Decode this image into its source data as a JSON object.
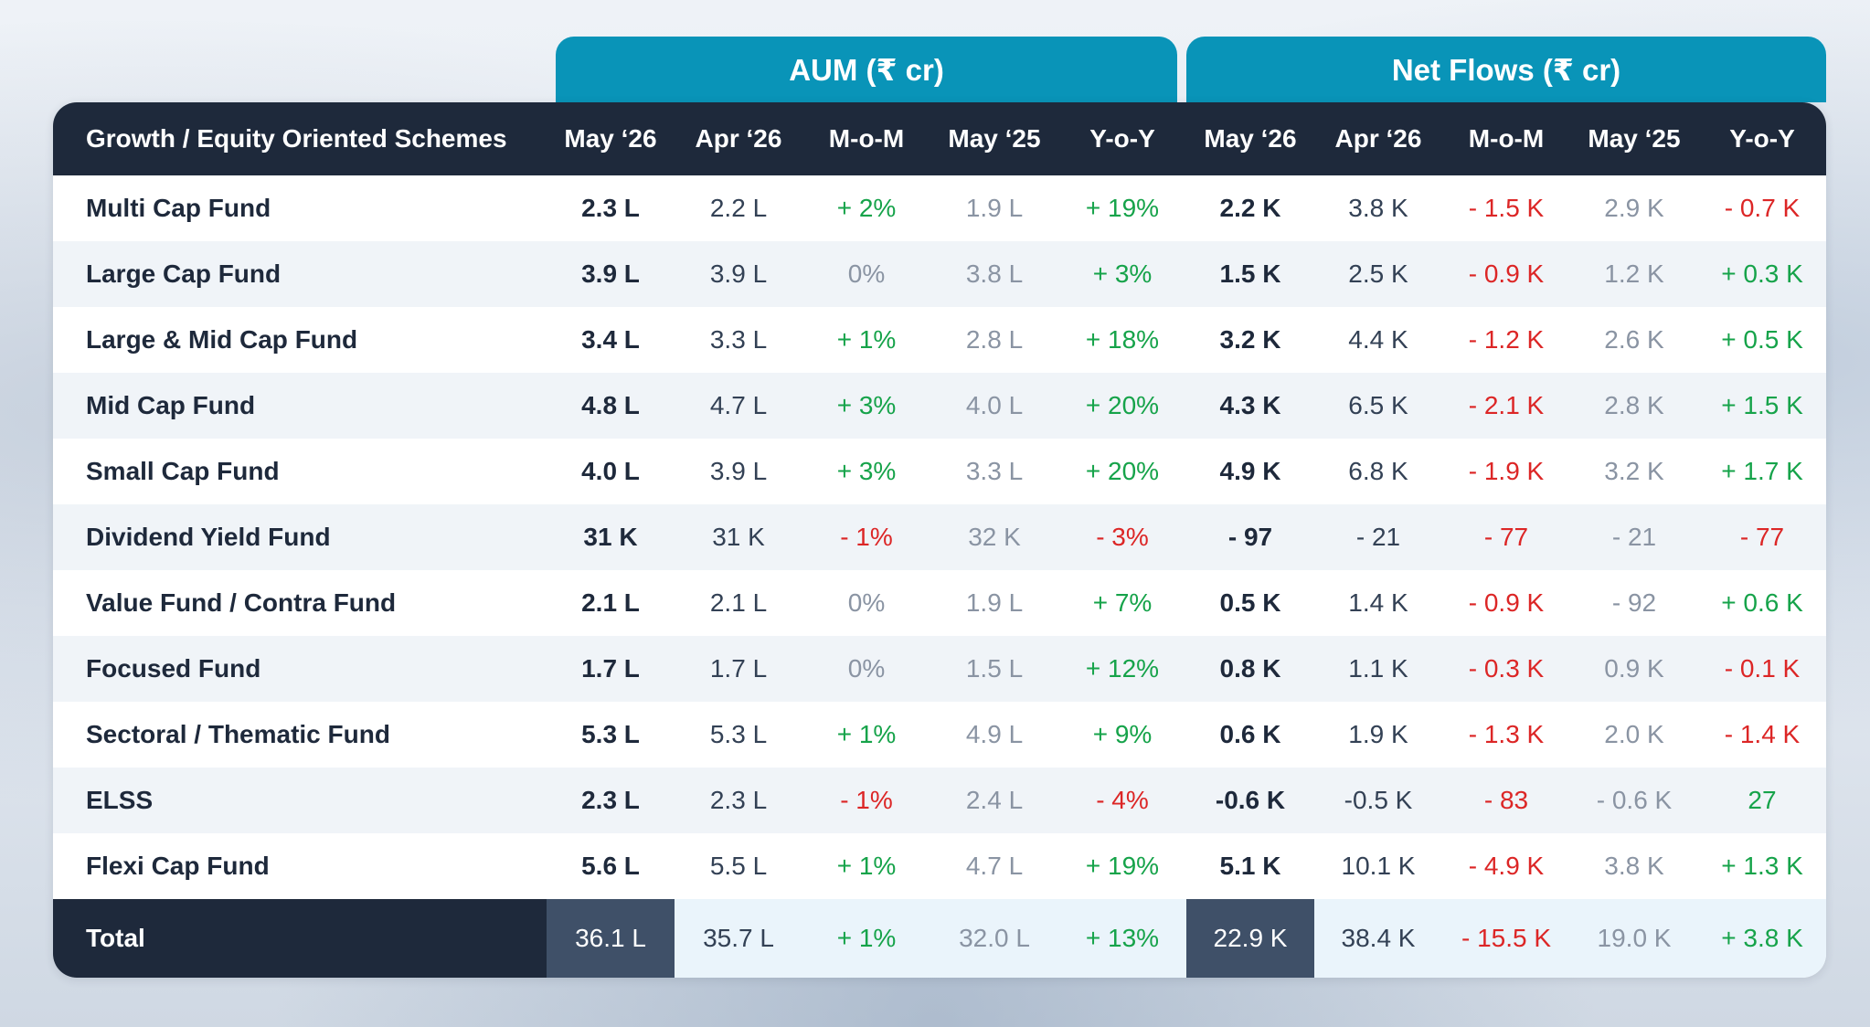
{
  "groups": {
    "aum": "AUM (₹ cr)",
    "flows": "Net Flows (₹ cr)"
  },
  "columns": [
    "Growth / Equity Oriented Schemes",
    "May ‘26",
    "Apr ‘26",
    "M-o-M",
    "May ‘25",
    "Y-o-Y",
    "May ‘26",
    "Apr ‘26",
    "M-o-M",
    "May ‘25",
    "Y-o-Y"
  ],
  "rows": [
    {
      "name": "Multi Cap Fund",
      "v": [
        "2.3 L",
        "2.2 L",
        "+ 2%",
        "1.9 L",
        "+ 19%",
        "2.2 K",
        "3.8 K",
        "- 1.5 K",
        "2.9 K",
        "- 0.7 K"
      ]
    },
    {
      "name": "Large Cap Fund",
      "v": [
        "3.9 L",
        "3.9 L",
        "0%",
        "3.8 L",
        "+ 3%",
        "1.5 K",
        "2.5 K",
        "- 0.9 K",
        "1.2 K",
        "+ 0.3 K"
      ]
    },
    {
      "name": "Large & Mid Cap Fund",
      "v": [
        "3.4 L",
        "3.3 L",
        "+ 1%",
        "2.8 L",
        "+ 18%",
        "3.2 K",
        "4.4 K",
        "- 1.2 K",
        "2.6 K",
        "+ 0.5 K"
      ]
    },
    {
      "name": "Mid Cap Fund",
      "v": [
        "4.8 L",
        "4.7 L",
        "+ 3%",
        "4.0 L",
        "+ 20%",
        "4.3 K",
        "6.5 K",
        "- 2.1 K",
        "2.8 K",
        "+ 1.5 K"
      ]
    },
    {
      "name": "Small Cap Fund",
      "v": [
        "4.0 L",
        "3.9 L",
        "+ 3%",
        "3.3 L",
        "+ 20%",
        "4.9 K",
        "6.8 K",
        "- 1.9 K",
        "3.2 K",
        "+ 1.7 K"
      ]
    },
    {
      "name": "Dividend Yield Fund",
      "v": [
        "31 K",
        "31 K",
        "- 1%",
        "32 K",
        "- 3%",
        "- 97",
        "- 21",
        "- 77",
        "- 21",
        "- 77"
      ]
    },
    {
      "name": "Value Fund / Contra Fund",
      "v": [
        "2.1 L",
        "2.1 L",
        "0%",
        "1.9 L",
        "+ 7%",
        "0.5 K",
        "1.4 K",
        "- 0.9 K",
        "- 92",
        "+ 0.6 K"
      ]
    },
    {
      "name": "Focused Fund",
      "v": [
        "1.7 L",
        "1.7 L",
        "0%",
        "1.5 L",
        "+ 12%",
        "0.8 K",
        "1.1 K",
        "- 0.3 K",
        "0.9 K",
        "- 0.1 K"
      ]
    },
    {
      "name": "Sectoral / Thematic Fund",
      "v": [
        "5.3 L",
        "5.3 L",
        "+ 1%",
        "4.9 L",
        "+ 9%",
        "0.6 K",
        "1.9 K",
        "- 1.3 K",
        "2.0 K",
        "- 1.4 K"
      ]
    },
    {
      "name": "ELSS",
      "v": [
        "2.3 L",
        "2.3 L",
        "- 1%",
        "2.4 L",
        "- 4%",
        "-0.6 K",
        "-0.5 K",
        "- 83",
        "- 0.6 K",
        "27"
      ]
    },
    {
      "name": "Flexi Cap Fund",
      "v": [
        "5.6 L",
        "5.5 L",
        "+ 1%",
        "4.7 L",
        "+ 19%",
        "5.1 K",
        "10.1 K",
        "- 4.9 K",
        "3.8 K",
        "+ 1.3 K"
      ]
    }
  ],
  "total": {
    "name": "Total",
    "v": [
      "36.1 L",
      "35.7 L",
      "+ 1%",
      "32.0 L",
      "+ 13%",
      "22.9 K",
      "38.4 K",
      "- 15.5 K",
      "19.0 K",
      "+ 3.8 K"
    ]
  },
  "colors": {
    "header": "#1e293b",
    "group": "#0994b8",
    "positive": "#16a34a",
    "negative": "#dc2626",
    "muted": "#8a94a3"
  }
}
